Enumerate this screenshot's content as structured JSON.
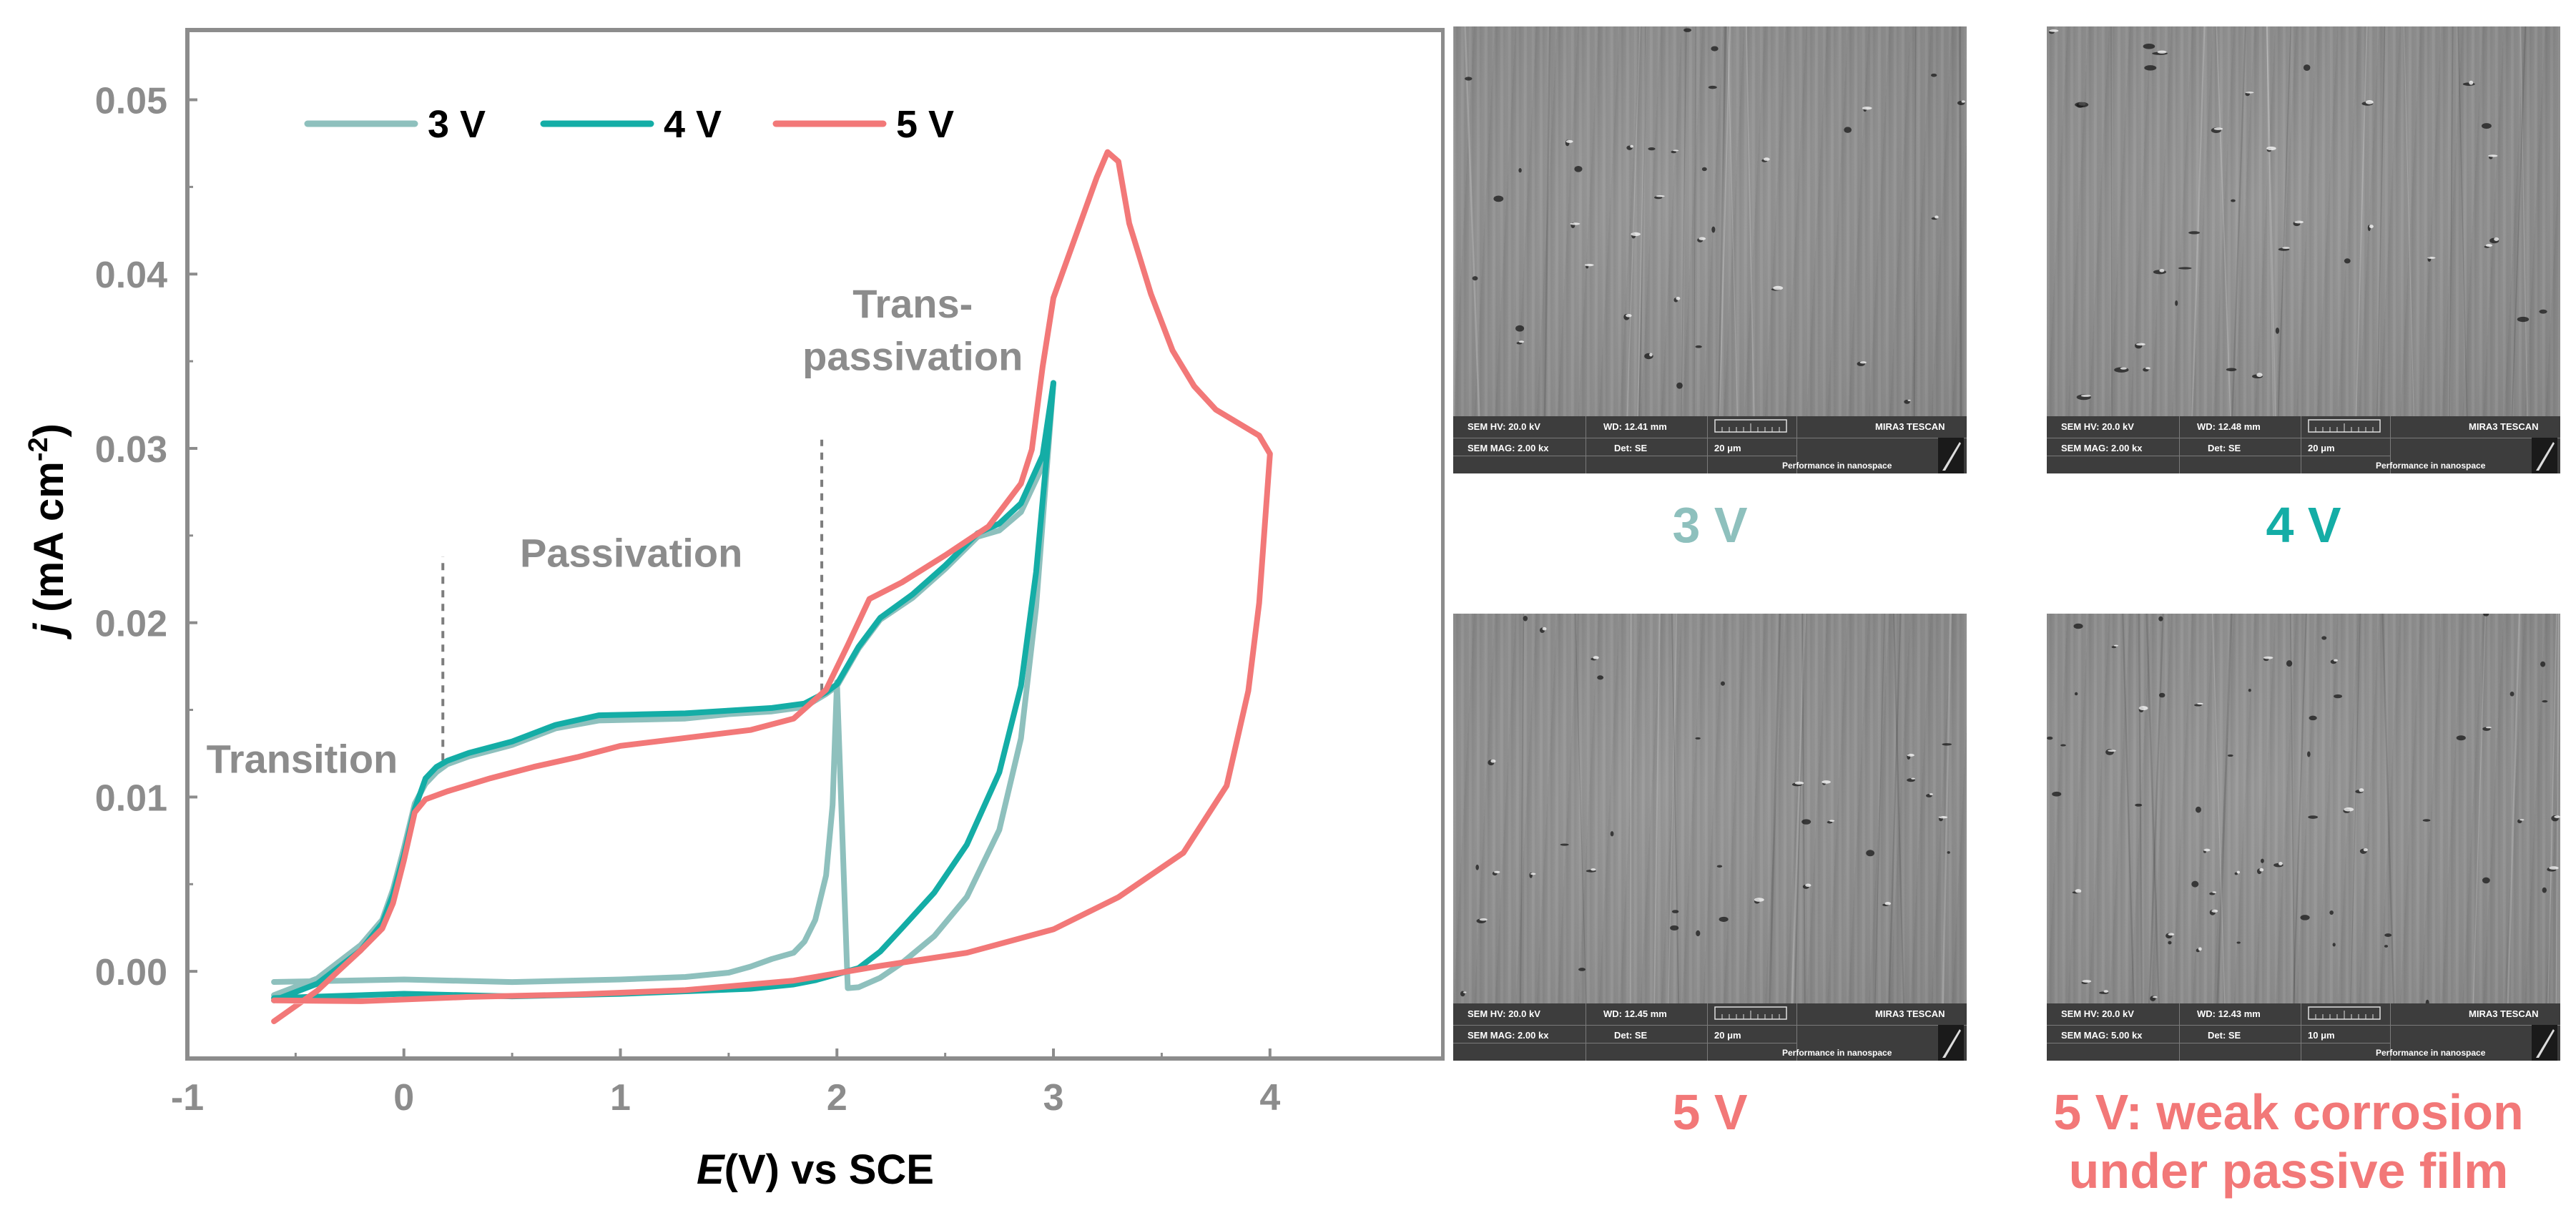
{
  "chart_data": {
    "type": "line",
    "xlabel_italic": "E",
    "xlabel_rest": "(V) vs SCE",
    "ylabel_italic": "j",
    "ylabel_rest": " (mA cm",
    "ylabel_sup": "-2",
    "ylabel_close": ")",
    "xlim": [
      -1,
      4.8
    ],
    "ylim": [
      -0.005,
      0.054
    ],
    "xticks": [
      -1,
      0,
      1,
      2,
      3,
      4
    ],
    "xtick_labels": [
      "-1",
      "0",
      "1",
      "2",
      "3",
      "4"
    ],
    "yticks": [
      0.0,
      0.01,
      0.02,
      0.03,
      0.04,
      0.05
    ],
    "ytick_labels": [
      "0.00",
      "0.01",
      "0.02",
      "0.03",
      "0.04",
      "0.05"
    ],
    "annotations": [
      {
        "text": "Transition",
        "x": -0.47,
        "y": 0.0114
      },
      {
        "text": "Passivation",
        "x": 1.05,
        "y": 0.0232
      },
      {
        "text": "Trans-",
        "x": 2.35,
        "y": 0.0375
      },
      {
        "text": "passivation",
        "x": 2.35,
        "y": 0.0345
      }
    ],
    "markers": [
      {
        "x": 0.18,
        "y0": 0.0121,
        "y1": 0.0238
      },
      {
        "x": 1.93,
        "y0": 0.0161,
        "y1": 0.0305
      }
    ],
    "series": [
      {
        "name": "3 V",
        "color": "#8ec0bd",
        "x": [
          -0.6,
          -0.4,
          -0.3,
          -0.2,
          -0.1,
          -0.05,
          0.0,
          0.05,
          0.1,
          0.15,
          0.2,
          0.3,
          0.5,
          0.7,
          0.9,
          1.1,
          1.3,
          1.5,
          1.7,
          1.85,
          1.95,
          2.0,
          2.1,
          2.2,
          2.35,
          2.5,
          2.65,
          2.75,
          2.85,
          2.95,
          3.0,
          2.92,
          2.85,
          2.75,
          2.6,
          2.45,
          2.3,
          2.2,
          2.1,
          2.05,
          2.0,
          1.98,
          1.95,
          1.9,
          1.85,
          1.8,
          1.7,
          1.6,
          1.5,
          1.3,
          1.0,
          0.5,
          0.0,
          -0.6
        ],
        "y": [
          -0.0015,
          -0.0005,
          0.0005,
          0.0015,
          0.003,
          0.0048,
          0.0072,
          0.0095,
          0.0107,
          0.0114,
          0.0119,
          0.0124,
          0.0131,
          0.0138,
          0.0143,
          0.0144,
          0.0145,
          0.0148,
          0.015,
          0.0153,
          0.0158,
          0.0163,
          0.0185,
          0.0202,
          0.0215,
          0.0232,
          0.0248,
          0.0252,
          0.0263,
          0.029,
          0.0338,
          0.021,
          0.0135,
          0.008,
          0.0042,
          0.002,
          0.0005,
          -0.0003,
          -0.0008,
          -0.0011,
          0.0165,
          0.0095,
          0.0055,
          0.003,
          0.0018,
          0.0012,
          0.0006,
          0.0002,
          -0.0001,
          -0.0003,
          -0.0004,
          -0.0005,
          -0.0006,
          -0.0007
        ]
      },
      {
        "name": "4 V",
        "color": "#14ada6",
        "x": [
          -0.6,
          -0.4,
          -0.3,
          -0.2,
          -0.1,
          -0.05,
          0.0,
          0.05,
          0.1,
          0.15,
          0.2,
          0.3,
          0.5,
          0.7,
          0.9,
          1.1,
          1.3,
          1.5,
          1.7,
          1.85,
          1.95,
          2.0,
          2.1,
          2.2,
          2.35,
          2.5,
          2.65,
          2.75,
          2.85,
          2.95,
          3.0,
          2.92,
          2.85,
          2.75,
          2.6,
          2.45,
          2.3,
          2.2,
          2.1,
          2.0,
          1.9,
          1.8,
          1.6,
          1.3,
          1.0,
          0.5,
          0.0,
          -0.6
        ],
        "y": [
          -0.0018,
          -0.0008,
          0.0002,
          0.0012,
          0.0028,
          0.0045,
          0.0068,
          0.0092,
          0.011,
          0.0117,
          0.0121,
          0.0126,
          0.0133,
          0.014,
          0.0146,
          0.0147,
          0.0148,
          0.015,
          0.0152,
          0.0155,
          0.0159,
          0.0164,
          0.0186,
          0.0203,
          0.0217,
          0.0234,
          0.025,
          0.0256,
          0.0268,
          0.0296,
          0.0338,
          0.023,
          0.0165,
          0.0113,
          0.0072,
          0.0045,
          0.0025,
          0.0012,
          0.0003,
          -0.0003,
          -0.0006,
          -0.0008,
          -0.001,
          -0.0011,
          -0.0012,
          -0.0013,
          -0.0014,
          -0.0016
        ]
      },
      {
        "name": "5 V",
        "color": "#f27878",
        "x": [
          -0.6,
          -0.4,
          -0.3,
          -0.2,
          -0.1,
          -0.05,
          0.0,
          0.05,
          0.1,
          0.2,
          0.4,
          0.6,
          0.8,
          1.0,
          1.3,
          1.6,
          1.8,
          1.95,
          2.05,
          2.15,
          2.3,
          2.5,
          2.7,
          2.85,
          2.9,
          2.95,
          3.0,
          3.1,
          3.2,
          3.25,
          3.3,
          3.35,
          3.45,
          3.55,
          3.65,
          3.75,
          3.85,
          3.95,
          4.0,
          3.95,
          3.9,
          3.8,
          3.6,
          3.3,
          3.0,
          2.6,
          2.2,
          1.8,
          1.3,
          0.8,
          0.3,
          -0.2,
          -0.6
        ],
        "y": [
          -0.003,
          -0.0012,
          0.0,
          0.0012,
          0.0025,
          0.004,
          0.0065,
          0.009,
          0.0098,
          0.0103,
          0.0111,
          0.0118,
          0.0124,
          0.0128,
          0.0133,
          0.0138,
          0.0145,
          0.0162,
          0.0188,
          0.0215,
          0.0222,
          0.0238,
          0.0255,
          0.028,
          0.03,
          0.0348,
          0.0385,
          0.042,
          0.0455,
          0.047,
          0.0465,
          0.043,
          0.039,
          0.0355,
          0.0335,
          0.0322,
          0.0315,
          0.0308,
          0.0298,
          0.021,
          0.016,
          0.0106,
          0.0068,
          0.0043,
          0.0025,
          0.0012,
          0.0002,
          -0.0006,
          -0.0011,
          -0.0013,
          -0.0014,
          -0.0016,
          -0.0018
        ]
      }
    ]
  },
  "sem_panels": [
    {
      "hv": "SEM HV: 20.0 kV",
      "wd": "WD: 12.41 mm",
      "mag": "SEM MAG: 2.00 kx",
      "det": "Det: SE",
      "scale": "20 μm",
      "brand": "MIRA3 TESCAN",
      "slogan": "Performance in nanospace"
    },
    {
      "hv": "SEM HV: 20.0 kV",
      "wd": "WD: 12.48 mm",
      "mag": "SEM MAG: 2.00 kx",
      "det": "Det: SE",
      "scale": "20 μm",
      "brand": "MIRA3 TESCAN",
      "slogan": "Performance in nanospace"
    },
    {
      "hv": "SEM HV: 20.0 kV",
      "wd": "WD: 12.45 mm",
      "mag": "SEM MAG: 2.00 kx",
      "det": "Det: SE",
      "scale": "20 μm",
      "brand": "MIRA3 TESCAN",
      "slogan": "Performance in nanospace"
    },
    {
      "hv": "SEM HV: 20.0 kV",
      "wd": "WD: 12.43 mm",
      "mag": "SEM MAG: 5.00 kx",
      "det": "Det: SE",
      "scale": "10 μm",
      "brand": "MIRA3 TESCAN",
      "slogan": "Performance in nanospace"
    }
  ],
  "captions": [
    {
      "text": "3 V",
      "color": "#8ec0bd"
    },
    {
      "text": "4 V",
      "color": "#14ada6"
    },
    {
      "text": "5 V",
      "color": "#f27878"
    },
    {
      "line1": "5 V: weak corrosion",
      "line2": "under passive film",
      "color": "#f27878"
    }
  ],
  "colors": {
    "axis": "#8c8c8c",
    "annotation": "#8c8c8c",
    "tick_label": "#8c8c8c"
  }
}
